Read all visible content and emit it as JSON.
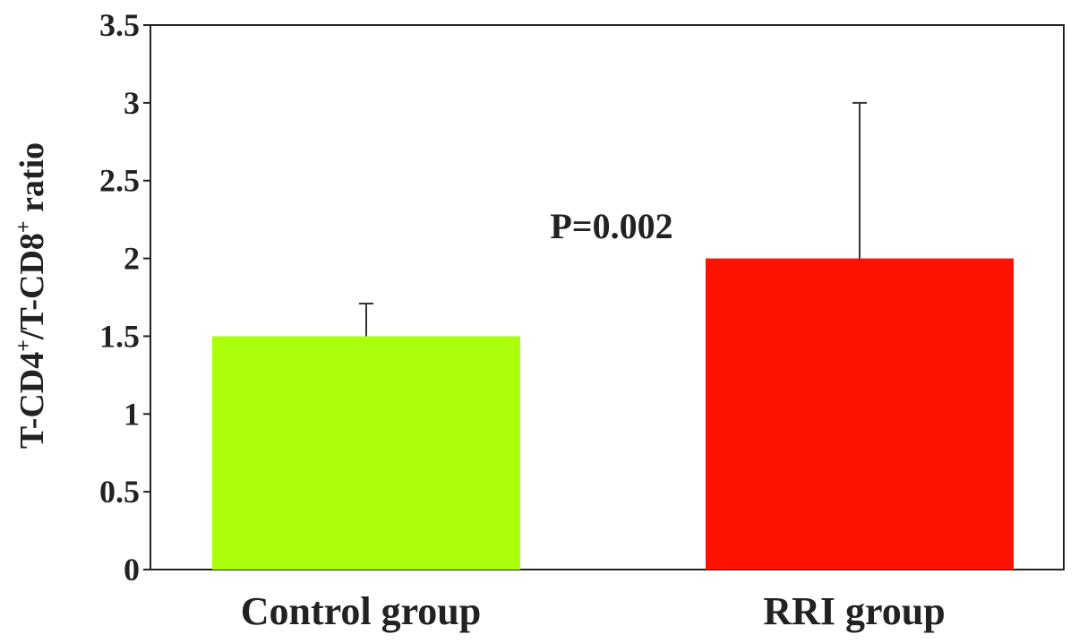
{
  "chart_data": {
    "type": "bar",
    "categories": [
      "Control group",
      "RRI group"
    ],
    "values": [
      1.5,
      2.0
    ],
    "error_upper": [
      1.71,
      3.0
    ],
    "ylim": [
      0,
      3.5
    ],
    "yticks": [
      "0",
      "0.5",
      "1",
      "1.5",
      "2",
      "2.5",
      "3",
      "3.5"
    ],
    "yticks_values": [
      0,
      0.5,
      1,
      1.5,
      2,
      2.5,
      3,
      3.5
    ],
    "ylabel": {
      "p1": "T-CD4",
      "sup1": "+",
      "p2": "/T-CD8",
      "sup2": "+",
      "p3": " ratio"
    },
    "xlabel": "",
    "annotation": "P=0.002",
    "bar_colors": [
      "#aaff0b",
      "#ff1300"
    ],
    "grid": false,
    "legend": "none"
  }
}
